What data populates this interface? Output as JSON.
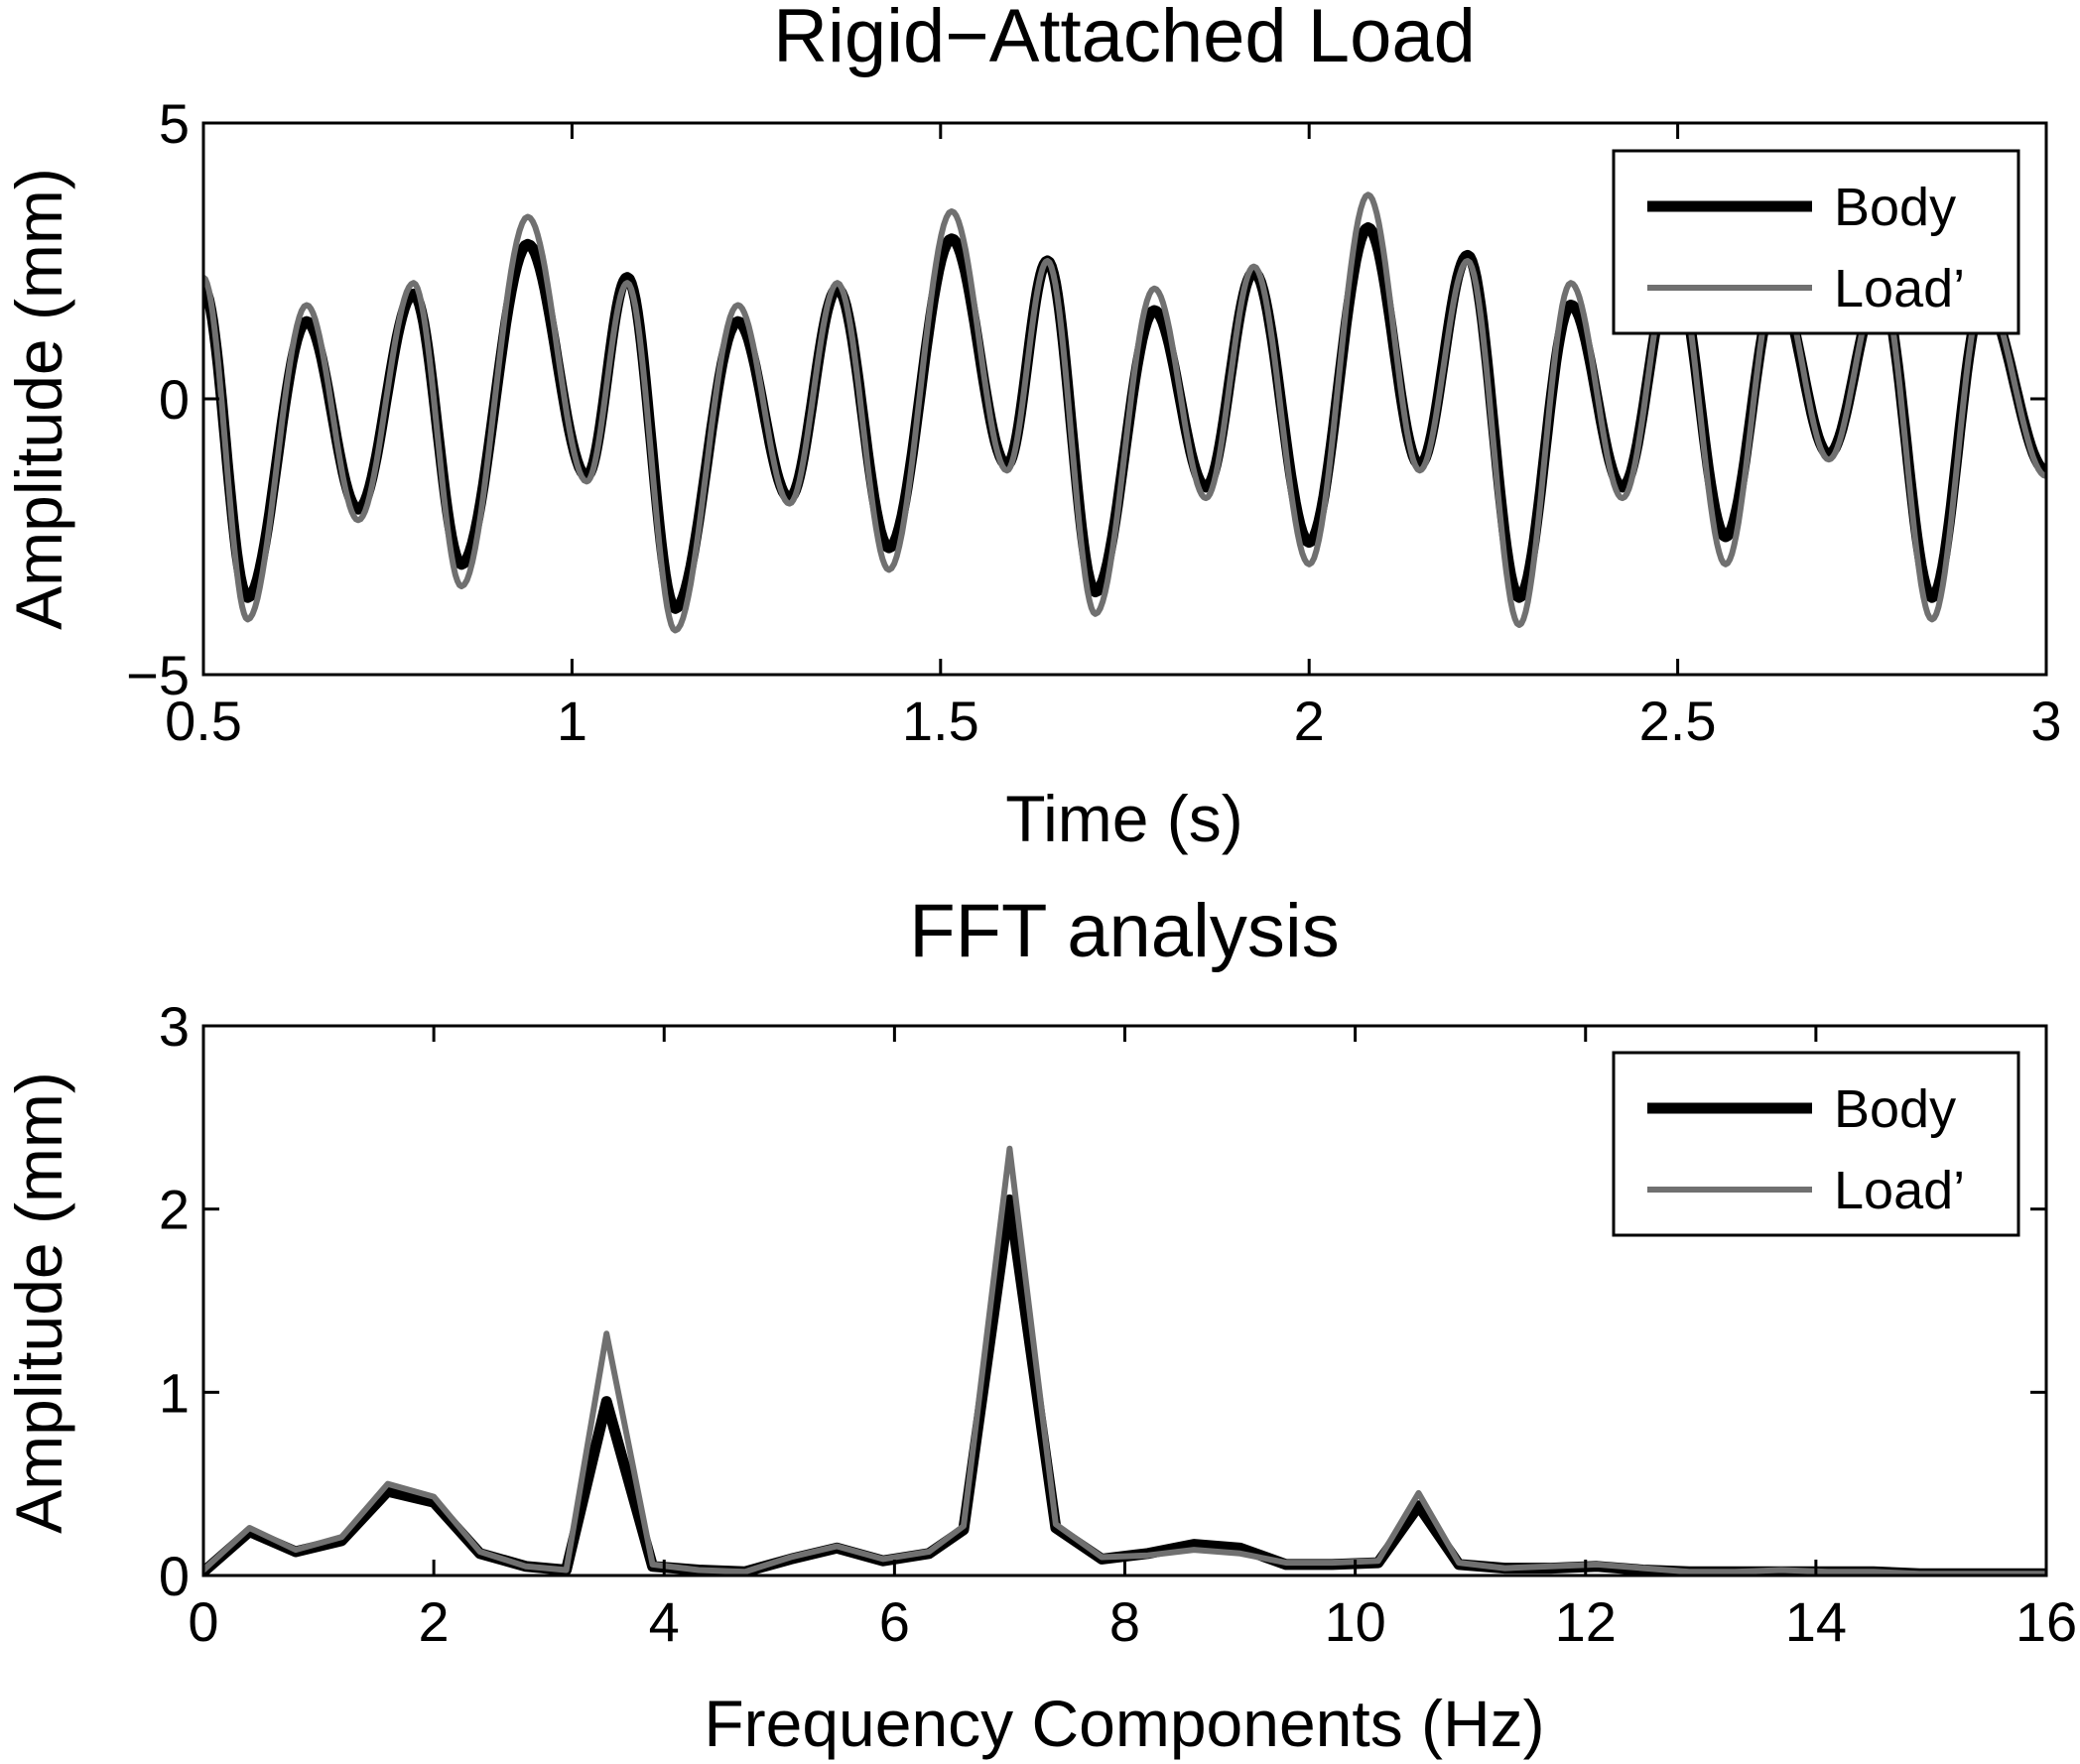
{
  "chart_data": [
    {
      "type": "line",
      "title": "Rigid−Attached Load",
      "xlabel": "Time (s)",
      "ylabel": "Amplitude (mm)",
      "xlim": [
        0.5,
        3
      ],
      "ylim": [
        -5,
        5
      ],
      "xticks": [
        0.5,
        1,
        1.5,
        2,
        2.5,
        3
      ],
      "xtick_labels": [
        "0.5",
        "1",
        "1.5",
        "2",
        "2.5",
        "3"
      ],
      "yticks": [
        -5,
        0,
        5
      ],
      "ytick_labels": [
        "−5",
        "0",
        "5"
      ],
      "grid": false,
      "legend_position": "top-right",
      "x_peaks": [
        0.5,
        0.56,
        0.64,
        0.71,
        0.785,
        0.85,
        0.94,
        1.02,
        1.075,
        1.14,
        1.225,
        1.295,
        1.36,
        1.43,
        1.515,
        1.59,
        1.645,
        1.71,
        1.79,
        1.86,
        1.925,
        2.0,
        2.08,
        2.15,
        2.215,
        2.285,
        2.355,
        2.425,
        2.495,
        2.565,
        2.635,
        2.705,
        2.775,
        2.845,
        2.915,
        3.0
      ],
      "series": [
        {
          "name": "Body",
          "color": "#000000",
          "y_peaks": [
            2.0,
            -3.6,
            1.4,
            -2.0,
            1.9,
            -3.0,
            2.8,
            -1.4,
            2.2,
            -3.8,
            1.4,
            -1.8,
            2.0,
            -2.7,
            2.9,
            -1.2,
            2.5,
            -3.5,
            1.6,
            -1.6,
            2.3,
            -2.6,
            3.1,
            -1.2,
            2.6,
            -3.6,
            1.7,
            -1.6,
            2.4,
            -2.5,
            2.0,
            -1.0,
            2.0,
            -3.6,
            1.8,
            -1.3
          ]
        },
        {
          "name": "Load’",
          "color": "#707070",
          "y_peaks": [
            2.2,
            -4.0,
            1.7,
            -2.2,
            2.1,
            -3.4,
            3.3,
            -1.5,
            2.1,
            -4.2,
            1.7,
            -1.9,
            2.1,
            -3.1,
            3.4,
            -1.3,
            2.5,
            -3.9,
            2.0,
            -1.8,
            2.4,
            -3.0,
            3.7,
            -1.3,
            2.5,
            -4.1,
            2.1,
            -1.8,
            2.6,
            -3.0,
            2.2,
            -1.1,
            2.1,
            -4.0,
            1.9,
            -1.4
          ]
        }
      ]
    },
    {
      "type": "line",
      "title": "FFT analysis",
      "xlabel": "Frequency Components (Hz)",
      "ylabel": "Amplitude (mm)",
      "xlim": [
        0,
        16
      ],
      "ylim": [
        0,
        3
      ],
      "xticks": [
        0,
        2,
        4,
        6,
        8,
        10,
        12,
        14,
        16
      ],
      "xtick_labels": [
        "0",
        "2",
        "4",
        "6",
        "8",
        "10",
        "12",
        "14",
        "16"
      ],
      "yticks": [
        0,
        1,
        2,
        3
      ],
      "ytick_labels": [
        "0",
        "1",
        "2",
        "3"
      ],
      "grid": false,
      "legend_position": "top-right",
      "x": [
        0,
        0.4,
        0.8,
        1.2,
        1.6,
        2.0,
        2.4,
        2.8,
        3.15,
        3.5,
        3.9,
        4.3,
        4.7,
        5.1,
        5.5,
        5.9,
        6.3,
        6.6,
        7.0,
        7.4,
        7.8,
        8.2,
        8.6,
        9.0,
        9.4,
        9.8,
        10.2,
        10.55,
        10.9,
        11.3,
        11.7,
        12.1,
        12.5,
        12.9,
        13.3,
        13.7,
        14.1,
        14.5,
        14.9,
        15.3,
        15.7,
        16.0
      ],
      "series": [
        {
          "name": "Body",
          "color": "#000000",
          "values": [
            0.02,
            0.24,
            0.13,
            0.19,
            0.46,
            0.4,
            0.12,
            0.05,
            0.03,
            0.95,
            0.05,
            0.03,
            0.02,
            0.09,
            0.15,
            0.08,
            0.12,
            0.25,
            2.05,
            0.26,
            0.09,
            0.12,
            0.17,
            0.15,
            0.06,
            0.06,
            0.07,
            0.38,
            0.06,
            0.04,
            0.04,
            0.05,
            0.03,
            0.02,
            0.02,
            0.02,
            0.02,
            0.02,
            0.01,
            0.01,
            0.01,
            0.01
          ]
        },
        {
          "name": "Load’",
          "color": "#707070",
          "values": [
            0.03,
            0.26,
            0.14,
            0.21,
            0.5,
            0.43,
            0.13,
            0.05,
            0.03,
            1.32,
            0.06,
            0.03,
            0.02,
            0.1,
            0.16,
            0.09,
            0.13,
            0.27,
            2.33,
            0.28,
            0.1,
            0.11,
            0.14,
            0.12,
            0.07,
            0.07,
            0.08,
            0.45,
            0.07,
            0.04,
            0.05,
            0.06,
            0.04,
            0.02,
            0.02,
            0.03,
            0.02,
            0.02,
            0.01,
            0.01,
            0.01,
            0.01
          ]
        }
      ]
    }
  ]
}
